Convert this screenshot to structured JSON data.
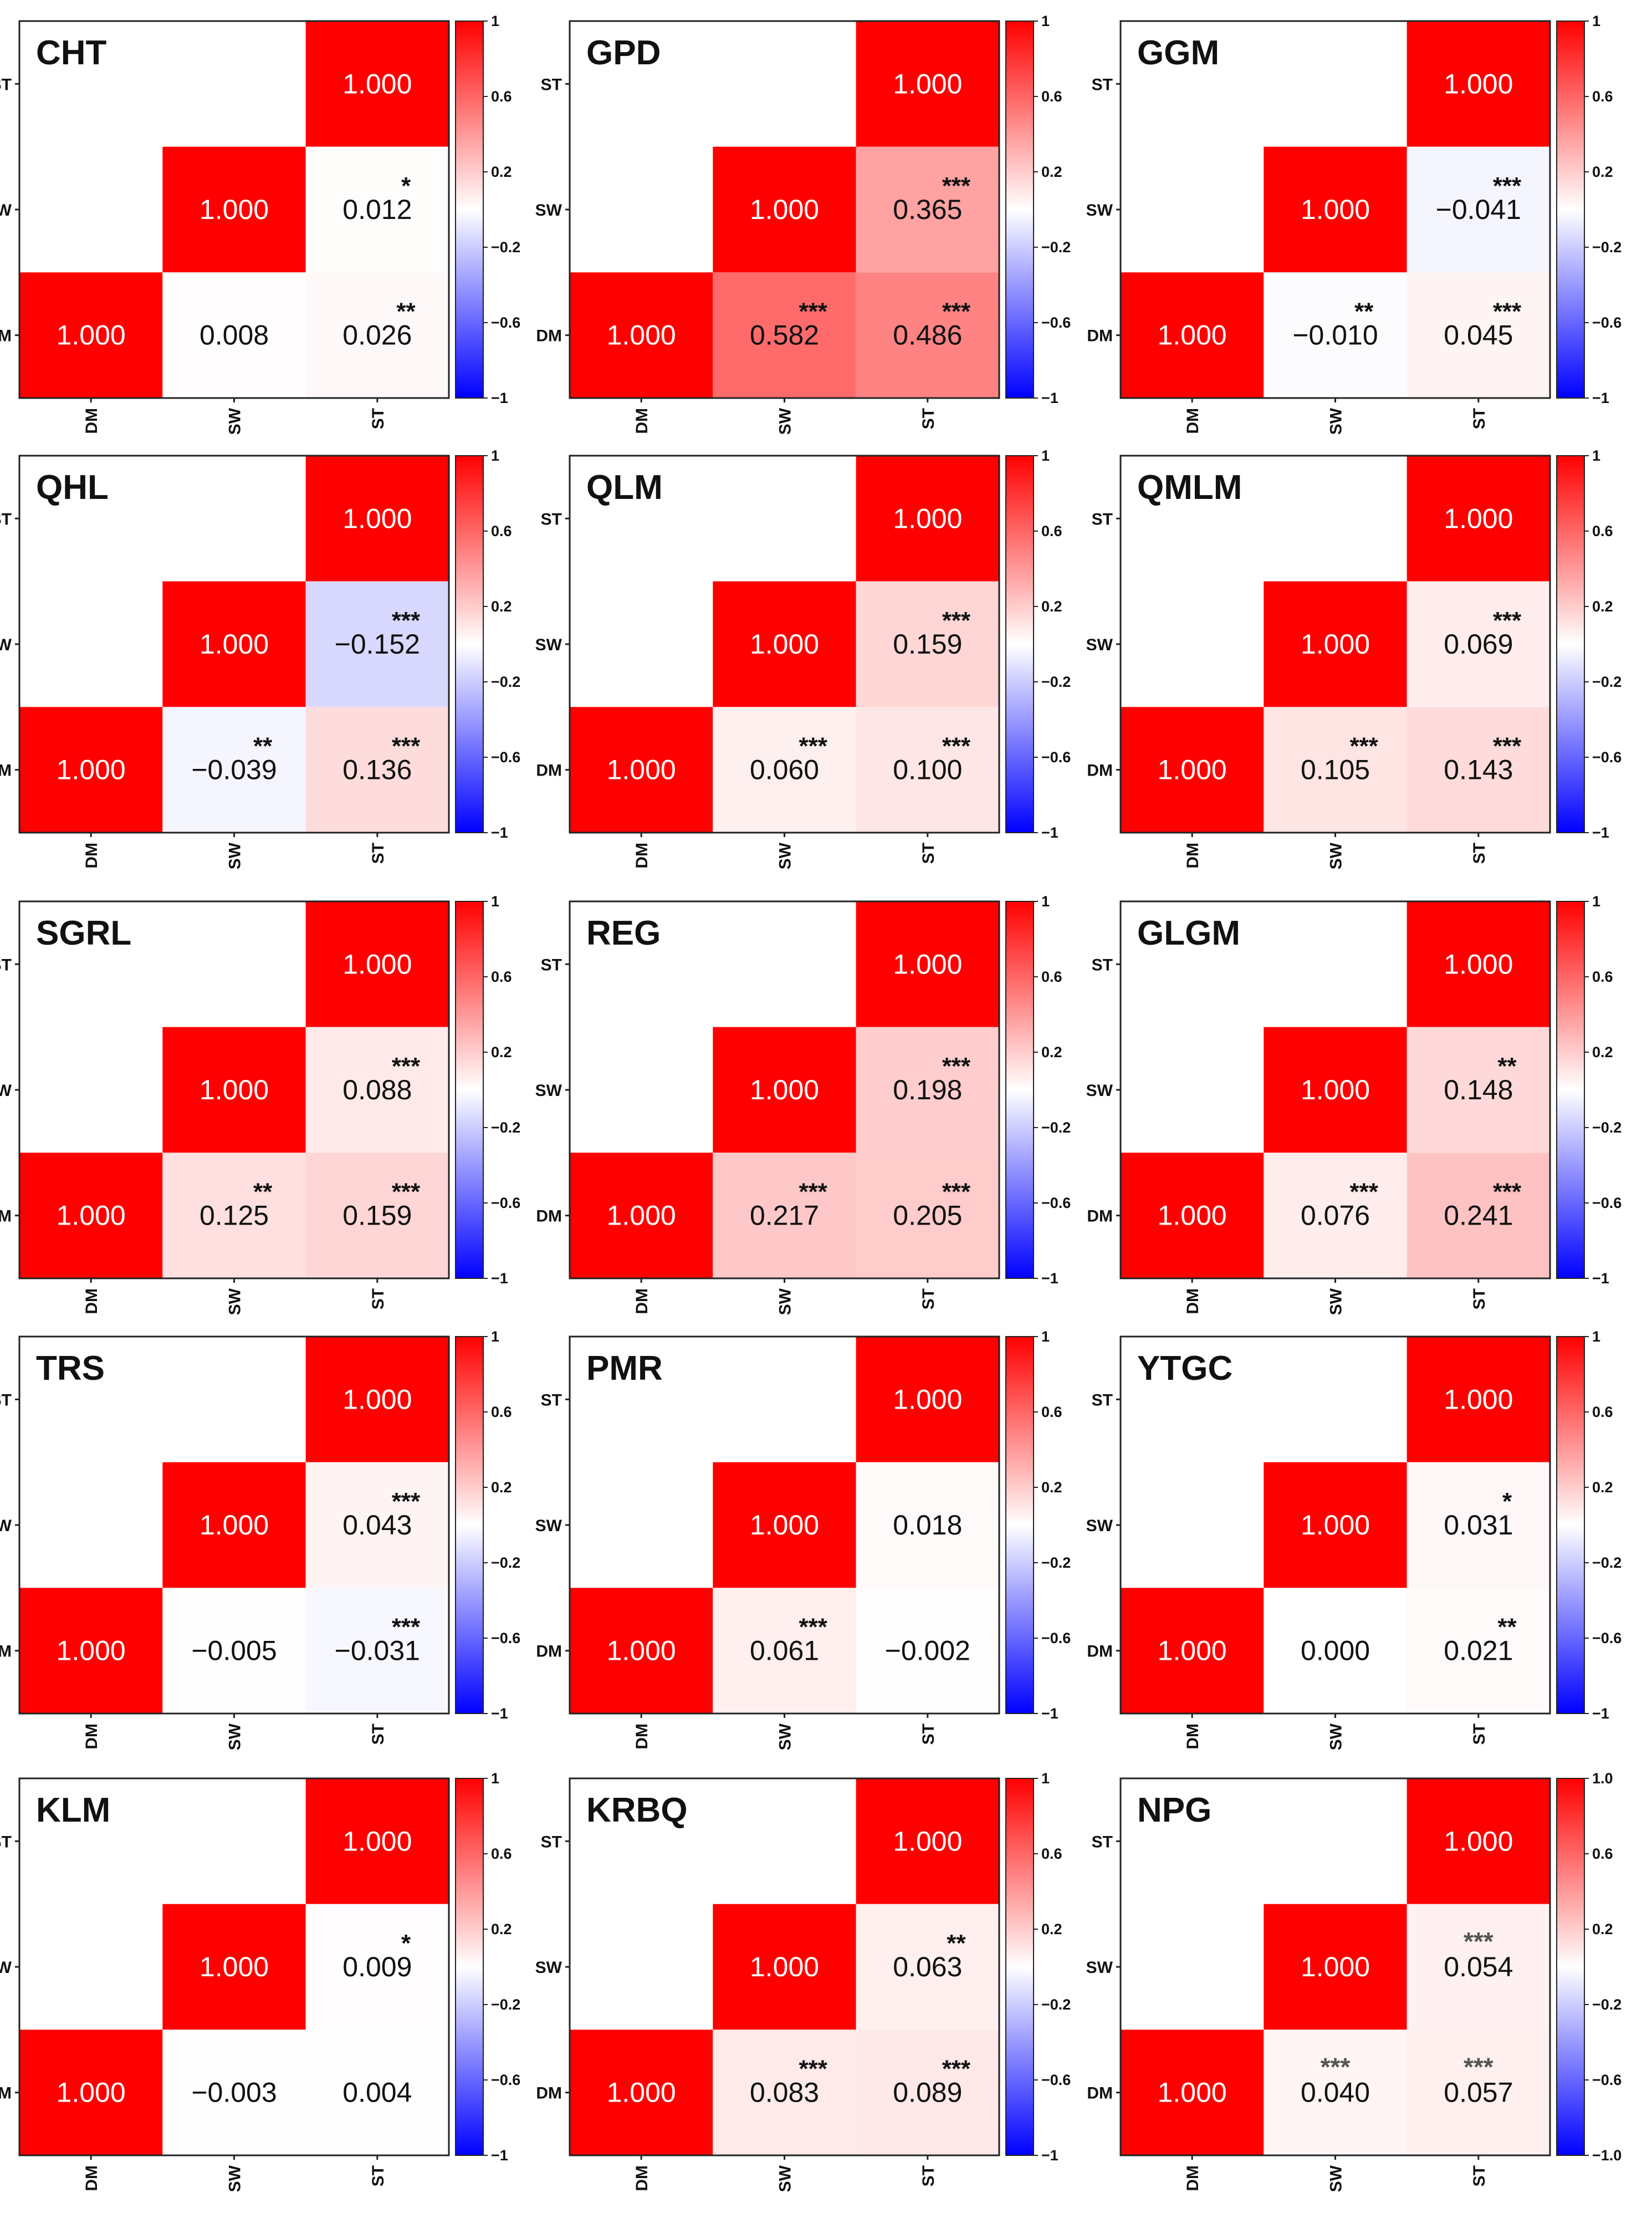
{
  "chart_data": {
    "type": "heatmap",
    "variables": [
      "DM",
      "SW",
      "ST"
    ],
    "colorscale": {
      "low": "#0000ff",
      "mid": "#ffffff",
      "high": "#ff0000",
      "range": [
        -1,
        1
      ]
    },
    "default_colorbar_ticks": [
      "1",
      "0.6",
      "0.2",
      "−0.2",
      "−0.6",
      "−1"
    ],
    "panels": [
      {
        "name": "CHT",
        "sw_dm": 0.008,
        "sw_dm_label": "0.008",
        "sw_dm_sig": "",
        "st_dm": 0.026,
        "st_dm_label": "0.026",
        "st_dm_sig": "**",
        "st_sw": 0.012,
        "st_sw_label": "0.012",
        "st_sw_sig": "*"
      },
      {
        "name": "GPD",
        "sw_dm": 0.582,
        "sw_dm_label": "0.582",
        "sw_dm_sig": "***",
        "st_dm": 0.486,
        "st_dm_label": "0.486",
        "st_dm_sig": "***",
        "st_sw": 0.365,
        "st_sw_label": "0.365",
        "st_sw_sig": "***"
      },
      {
        "name": "GGM",
        "sw_dm": -0.01,
        "sw_dm_label": "−0.010",
        "sw_dm_sig": "**",
        "st_dm": 0.045,
        "st_dm_label": "0.045",
        "st_dm_sig": "***",
        "st_sw": -0.041,
        "st_sw_label": "−0.041",
        "st_sw_sig": "***"
      },
      {
        "name": "QHL",
        "sw_dm": -0.039,
        "sw_dm_label": "−0.039",
        "sw_dm_sig": "**",
        "st_dm": 0.136,
        "st_dm_label": "0.136",
        "st_dm_sig": "***",
        "st_sw": -0.152,
        "st_sw_label": "−0.152",
        "st_sw_sig": "***"
      },
      {
        "name": "QLM",
        "sw_dm": 0.06,
        "sw_dm_label": "0.060",
        "sw_dm_sig": "***",
        "st_dm": 0.1,
        "st_dm_label": "0.100",
        "st_dm_sig": "***",
        "st_sw": 0.159,
        "st_sw_label": "0.159",
        "st_sw_sig": "***"
      },
      {
        "name": "QMLM",
        "sw_dm": 0.105,
        "sw_dm_label": "0.105",
        "sw_dm_sig": "***",
        "st_dm": 0.143,
        "st_dm_label": "0.143",
        "st_dm_sig": "***",
        "st_sw": 0.069,
        "st_sw_label": "0.069",
        "st_sw_sig": "***"
      },
      {
        "name": "SGRL",
        "sw_dm": 0.125,
        "sw_dm_label": "0.125",
        "sw_dm_sig": "**",
        "st_dm": 0.159,
        "st_dm_label": "0.159",
        "st_dm_sig": "***",
        "st_sw": 0.088,
        "st_sw_label": "0.088",
        "st_sw_sig": "***"
      },
      {
        "name": "REG",
        "sw_dm": 0.217,
        "sw_dm_label": "0.217",
        "sw_dm_sig": "***",
        "st_dm": 0.205,
        "st_dm_label": "0.205",
        "st_dm_sig": "***",
        "st_sw": 0.198,
        "st_sw_label": "0.198",
        "st_sw_sig": "***"
      },
      {
        "name": "GLGM",
        "sw_dm": 0.076,
        "sw_dm_label": "0.076",
        "sw_dm_sig": "***",
        "st_dm": 0.241,
        "st_dm_label": "0.241",
        "st_dm_sig": "***",
        "st_sw": 0.148,
        "st_sw_label": "0.148",
        "st_sw_sig": "**"
      },
      {
        "name": "TRS",
        "sw_dm": -0.005,
        "sw_dm_label": "−0.005",
        "sw_dm_sig": "",
        "st_dm": -0.031,
        "st_dm_label": "−0.031",
        "st_dm_sig": "***",
        "st_sw": 0.043,
        "st_sw_label": "0.043",
        "st_sw_sig": "***"
      },
      {
        "name": "PMR",
        "sw_dm": 0.061,
        "sw_dm_label": "0.061",
        "sw_dm_sig": "***",
        "st_dm": -0.002,
        "st_dm_label": "−0.002",
        "st_dm_sig": "",
        "st_sw": 0.018,
        "st_sw_label": "0.018",
        "st_sw_sig": ""
      },
      {
        "name": "YTGC",
        "sw_dm": 0.0,
        "sw_dm_label": "0.000",
        "sw_dm_sig": "",
        "st_dm": 0.021,
        "st_dm_label": "0.021",
        "st_dm_sig": "**",
        "st_sw": 0.031,
        "st_sw_label": "0.031",
        "st_sw_sig": "*"
      },
      {
        "name": "KLM",
        "sw_dm": -0.003,
        "sw_dm_label": "−0.003",
        "sw_dm_sig": "",
        "st_dm": 0.004,
        "st_dm_label": "0.004",
        "st_dm_sig": "",
        "st_sw": 0.009,
        "st_sw_label": "0.009",
        "st_sw_sig": "*"
      },
      {
        "name": "KRBQ",
        "sw_dm": 0.083,
        "sw_dm_label": "0.083",
        "sw_dm_sig": "***",
        "st_dm": 0.089,
        "st_dm_label": "0.089",
        "st_dm_sig": "***",
        "st_sw": 0.063,
        "st_sw_label": "0.063",
        "st_sw_sig": "**"
      },
      {
        "name": "NPG",
        "sw_dm": 0.04,
        "sw_dm_label": "0.040",
        "sw_dm_sig": "***",
        "st_dm": 0.057,
        "st_dm_label": "0.057",
        "st_dm_sig": "***",
        "st_sw": 0.054,
        "st_sw_label": "0.054",
        "st_sw_sig": "***",
        "colorbar_ticks": [
          "1.0",
          "0.6",
          "0.2",
          "−0.2",
          "−0.6",
          "−1.0"
        ],
        "sig_style": "gray"
      }
    ],
    "diagonal_label": "1.000",
    "diagonal_value": 1.0
  }
}
